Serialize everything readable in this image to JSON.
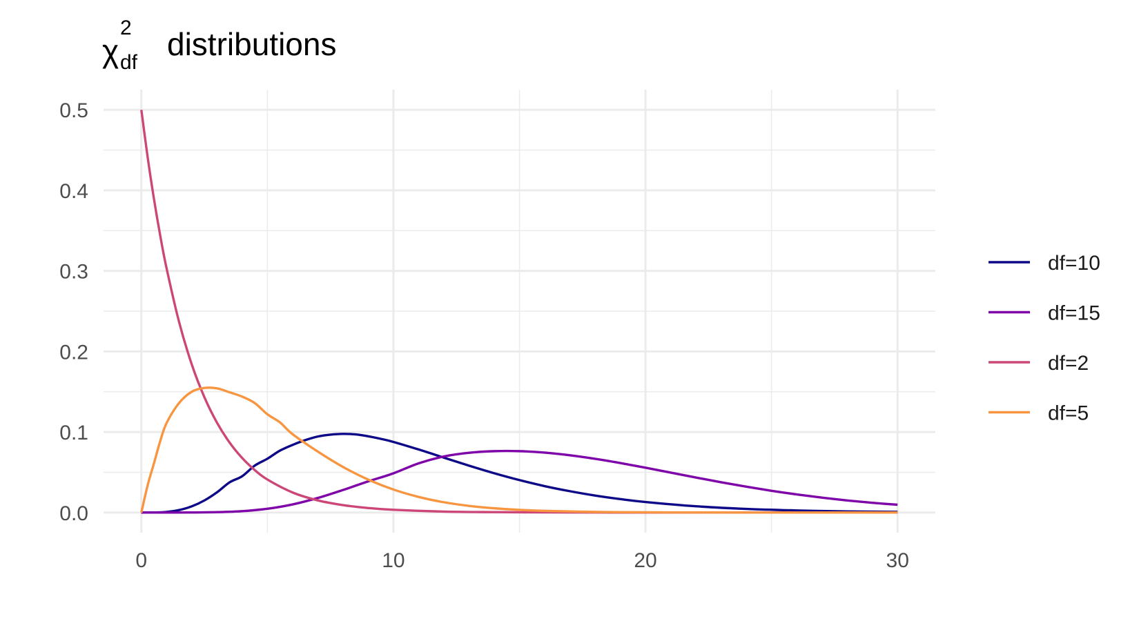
{
  "chart_data": {
    "type": "line",
    "title": {
      "symbol": "χ",
      "superscript": "2",
      "subscript": "df",
      "text": "distributions"
    },
    "xlabel": "",
    "ylabel": "",
    "xlim": [
      -1.5,
      31.5
    ],
    "ylim": [
      -0.025,
      0.525
    ],
    "x_ticks": [
      0,
      10,
      20,
      30
    ],
    "x_tick_labels": [
      "0",
      "10",
      "20",
      "30"
    ],
    "x_minor_ticks": [
      5,
      15,
      25
    ],
    "y_ticks": [
      0,
      0.1,
      0.2,
      0.3,
      0.4,
      0.5
    ],
    "y_tick_labels": [
      "0.0",
      "0.1",
      "0.2",
      "0.3",
      "0.4",
      "0.5"
    ],
    "y_minor_ticks": [
      0.05,
      0.15,
      0.25,
      0.35,
      0.45
    ],
    "grid": true,
    "legend_position": "right",
    "series": [
      {
        "name": "df=10",
        "color": "#0d0887",
        "points": [
          [
            0,
            0
          ],
          [
            0.5,
            0.0001
          ],
          [
            1,
            0.0008
          ],
          [
            1.5,
            0.0031
          ],
          [
            2,
            0.0077
          ],
          [
            2.5,
            0.015
          ],
          [
            3,
            0.0251
          ],
          [
            3.5,
            0.0375
          ],
          [
            4,
            0.0451
          ],
          [
            4.5,
            0.0583
          ],
          [
            5,
            0.0668
          ],
          [
            5.5,
            0.0769
          ],
          [
            6,
            0.084
          ],
          [
            6.5,
            0.0899
          ],
          [
            7,
            0.0944
          ],
          [
            7.5,
            0.0967
          ],
          [
            8,
            0.0977
          ],
          [
            8.5,
            0.097
          ],
          [
            9,
            0.0947
          ],
          [
            9.5,
            0.0915
          ],
          [
            10,
            0.0877
          ],
          [
            11,
            0.0783
          ],
          [
            12,
            0.0682
          ],
          [
            13,
            0.0582
          ],
          [
            14,
            0.0488
          ],
          [
            15,
            0.0403
          ],
          [
            16,
            0.0328
          ],
          [
            17,
            0.0265
          ],
          [
            18,
            0.0211
          ],
          [
            19,
            0.0167
          ],
          [
            20,
            0.0131
          ],
          [
            22,
            0.0078
          ],
          [
            24,
            0.0045
          ],
          [
            26,
            0.0026
          ],
          [
            28,
            0.0014
          ],
          [
            30,
            0.0008
          ]
        ]
      },
      {
        "name": "df=15",
        "color": "#7e03a8",
        "points": [
          [
            0,
            0
          ],
          [
            1,
            0.0
          ],
          [
            2,
            0.0001
          ],
          [
            3,
            0.0005
          ],
          [
            4,
            0.0017
          ],
          [
            5,
            0.0047
          ],
          [
            6,
            0.0101
          ],
          [
            7,
            0.0181
          ],
          [
            8,
            0.028
          ],
          [
            9,
            0.0387
          ],
          [
            10,
            0.0487
          ],
          [
            11,
            0.0611
          ],
          [
            12,
            0.0696
          ],
          [
            13,
            0.0742
          ],
          [
            14,
            0.0762
          ],
          [
            15,
            0.0762
          ],
          [
            16,
            0.0744
          ],
          [
            17,
            0.0711
          ],
          [
            18,
            0.0667
          ],
          [
            19,
            0.0615
          ],
          [
            20,
            0.0557
          ],
          [
            21,
            0.0496
          ],
          [
            22,
            0.0435
          ],
          [
            23,
            0.0376
          ],
          [
            24,
            0.0321
          ],
          [
            25,
            0.027
          ],
          [
            26,
            0.0225
          ],
          [
            27,
            0.0185
          ],
          [
            28,
            0.015
          ],
          [
            29,
            0.0121
          ],
          [
            30,
            0.0097
          ]
        ]
      },
      {
        "name": "df=2",
        "color": "#cc4778",
        "points": [
          [
            0,
            0.5
          ],
          [
            0.25,
            0.4412
          ],
          [
            0.5,
            0.3894
          ],
          [
            0.75,
            0.3436
          ],
          [
            1,
            0.3033
          ],
          [
            1.5,
            0.2362
          ],
          [
            2,
            0.1839
          ],
          [
            2.5,
            0.1433
          ],
          [
            3,
            0.1116
          ],
          [
            3.5,
            0.0869
          ],
          [
            4,
            0.0677
          ],
          [
            4.5,
            0.0527
          ],
          [
            5,
            0.041
          ],
          [
            6,
            0.0249
          ],
          [
            7,
            0.0151
          ],
          [
            8,
            0.0092
          ],
          [
            9,
            0.0056
          ],
          [
            10,
            0.0034
          ],
          [
            12,
            0.0012
          ],
          [
            14,
            0.0005
          ],
          [
            16,
            0.0002
          ],
          [
            18,
            0.0001
          ],
          [
            20,
            0.0
          ],
          [
            25,
            0.0
          ],
          [
            30,
            0.0
          ]
        ]
      },
      {
        "name": "df=5",
        "color": "#f89540",
        "points": [
          [
            0,
            0
          ],
          [
            0.25,
            0.0339
          ],
          [
            0.5,
            0.0611
          ],
          [
            0.75,
            0.0888
          ],
          [
            1,
            0.1111
          ],
          [
            1.5,
            0.1361
          ],
          [
            2,
            0.15
          ],
          [
            2.5,
            0.1547
          ],
          [
            3,
            0.1542
          ],
          [
            3.5,
            0.1493
          ],
          [
            4,
            0.1439
          ],
          [
            4.5,
            0.1359
          ],
          [
            5,
            0.122
          ],
          [
            5.5,
            0.1119
          ],
          [
            6,
            0.0973
          ],
          [
            7,
            0.0757
          ],
          [
            8,
            0.0566
          ],
          [
            9,
            0.0409
          ],
          [
            10,
            0.0286
          ],
          [
            11,
            0.0194
          ],
          [
            12,
            0.0128
          ],
          [
            13,
            0.0083
          ],
          [
            14,
            0.0053
          ],
          [
            15,
            0.0033
          ],
          [
            16,
            0.0021
          ],
          [
            18,
            0.0008
          ],
          [
            20,
            0.0003
          ],
          [
            22,
            0.0001
          ],
          [
            25,
            0.0
          ],
          [
            30,
            0.0
          ]
        ]
      }
    ]
  }
}
